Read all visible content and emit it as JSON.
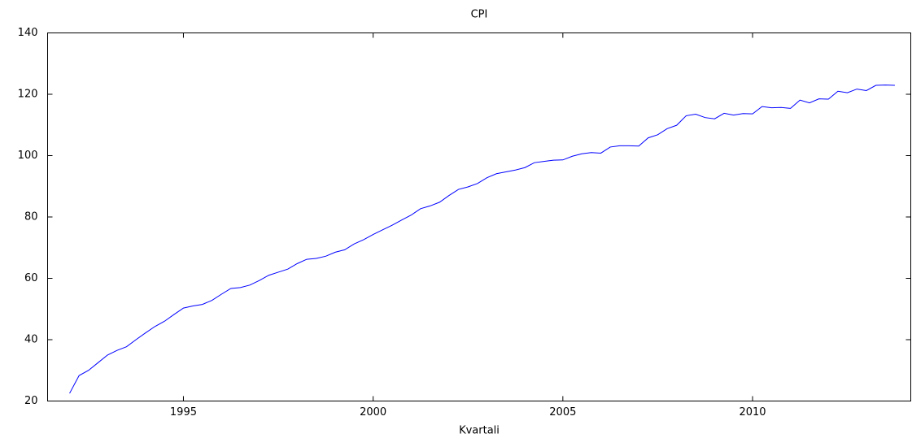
{
  "chart_data": {
    "type": "line",
    "title": "CPI",
    "x_label": "Kvartali",
    "x": [
      1992,
      1992.25,
      1992.5,
      1992.75,
      1993,
      1993.25,
      1993.5,
      1993.75,
      1994,
      1994.25,
      1994.5,
      1994.75,
      1995,
      1995.25,
      1995.5,
      1995.75,
      1996,
      1996.25,
      1996.5,
      1996.75,
      1997,
      1997.25,
      1997.5,
      1997.75,
      1998,
      1998.25,
      1998.5,
      1998.75,
      1999,
      1999.25,
      1999.5,
      1999.75,
      2000,
      2000.25,
      2000.5,
      2000.75,
      2001,
      2001.25,
      2001.5,
      2001.75,
      2002,
      2002.25,
      2002.5,
      2002.75,
      2003,
      2003.25,
      2003.5,
      2003.75,
      2004,
      2004.25,
      2004.5,
      2004.75,
      2005,
      2005.25,
      2005.5,
      2005.75,
      2006,
      2006.25,
      2006.5,
      2006.75,
      2007,
      2007.25,
      2007.5,
      2007.75,
      2008,
      2008.25,
      2008.5,
      2008.75,
      2009,
      2009.25,
      2009.5,
      2009.75,
      2010,
      2010.25,
      2010.5,
      2010.75,
      2011,
      2011.25,
      2011.5,
      2011.75,
      2012,
      2012.25,
      2012.5,
      2012.75,
      2013,
      2013.25,
      2013.5,
      2013.75
    ],
    "series": [
      {
        "name": "CPI",
        "color": "#0000ff",
        "values": [
          22.5,
          28.3,
          30,
          32.5,
          35,
          36.5,
          37.7,
          40,
          42.2,
          44.3,
          46,
          48.2,
          50.3,
          51,
          51.5,
          52.8,
          54.8,
          56.7,
          57,
          57.8,
          59.3,
          61,
          62,
          63,
          64.8,
          66.2,
          66.5,
          67.2,
          68.5,
          69.3,
          71.2,
          72.6,
          74.3,
          75.8,
          77.3,
          79,
          80.6,
          82.7,
          83.6,
          84.8,
          87,
          89,
          89.8,
          90.9,
          92.8,
          94.1,
          94.7,
          95.3,
          96.1,
          97.7,
          98.1,
          98.5,
          98.6,
          99.8,
          100.6,
          101,
          100.8,
          102.8,
          103.2,
          103.2,
          103.1,
          105.8,
          106.8,
          108.8,
          109.9,
          113,
          113.5,
          112.4,
          112,
          113.8,
          113.2,
          113.7,
          113.6,
          116,
          115.6,
          115.7,
          115.4,
          118.1,
          117.2,
          118.5,
          118.4,
          121,
          120.5,
          121.7,
          121.2,
          122.9,
          123,
          122.9
        ]
      }
    ],
    "xlim": [
      1991.42,
      2014.17
    ],
    "xticks": [
      1995,
      2000,
      2005,
      2010
    ],
    "ylim": [
      20,
      140
    ],
    "yticks": [
      20,
      40,
      60,
      80,
      100,
      120,
      140
    ]
  }
}
